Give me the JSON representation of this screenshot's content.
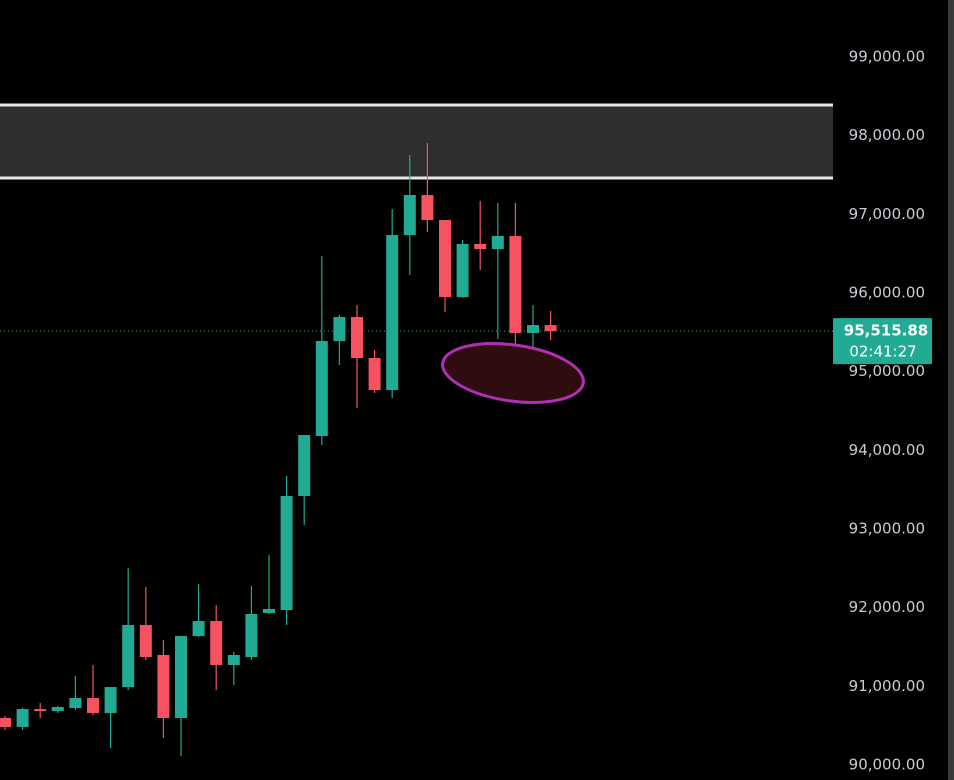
{
  "chart_data": {
    "type": "candlestick",
    "up_color": "#22ab94",
    "down_color": "#f7525f",
    "open": [
      90598,
      90484,
      90712,
      90687,
      90725,
      90852,
      90662,
      90992,
      91780,
      91399,
      90598,
      91640,
      91831,
      91272,
      91373,
      91933,
      91971,
      93420,
      94183,
      95390,
      95695,
      95174,
      94767,
      96737,
      97246,
      96928,
      95949,
      96623,
      96559,
      96725,
      95492,
      95593
    ],
    "high": [
      90623,
      90725,
      90789,
      90751,
      91132,
      91272,
      90992,
      92505,
      92263,
      91590,
      91640,
      92301,
      92034,
      91437,
      92276,
      92670,
      93674,
      94195,
      96471,
      95721,
      95848,
      95276,
      97068,
      97754,
      97907,
      96928,
      96674,
      97170,
      97144,
      97144,
      95848,
      95771
    ],
    "low": [
      90446,
      90446,
      90598,
      90662,
      90700,
      90636,
      90217,
      90954,
      91335,
      90344,
      90115,
      91628,
      90954,
      91017,
      91335,
      91920,
      91780,
      93051,
      94068,
      95085,
      94538,
      94729,
      94666,
      96229,
      96776,
      95759,
      95937,
      96293,
      95415,
      95174,
      95123,
      95403
    ],
    "close": [
      90484,
      90712,
      90687,
      90738,
      90852,
      90662,
      90992,
      91780,
      91373,
      90598,
      91640,
      91831,
      91272,
      91399,
      91920,
      91984,
      93420,
      94195,
      95390,
      95695,
      95174,
      94767,
      96737,
      97246,
      96928,
      95949,
      96623,
      96559,
      96725,
      95492,
      95593,
      95515.88
    ],
    "zone": [
      97462,
      98390
    ],
    "zone_color": "#2e2e2e",
    "last_price": {
      "value": 95515.88,
      "label": "95,515.88"
    },
    "countdown": "02:41:27",
    "ylim": [
      89810,
      99725
    ],
    "yticks": [
      {
        "value": 90000,
        "label": "90,000.00"
      },
      {
        "value": 91000,
        "label": "91,000.00"
      },
      {
        "value": 92000,
        "label": "92,000.00"
      },
      {
        "value": 93000,
        "label": "93,000.00"
      },
      {
        "value": 94000,
        "label": "94,000.00"
      },
      {
        "value": 95000,
        "label": "95,000.00"
      },
      {
        "value": 96000,
        "label": "96,000.00"
      },
      {
        "value": 97000,
        "label": "97,000.00"
      },
      {
        "value": 98000,
        "label": "98,000.00"
      },
      {
        "value": 99000,
        "label": "99,000.00"
      }
    ]
  }
}
